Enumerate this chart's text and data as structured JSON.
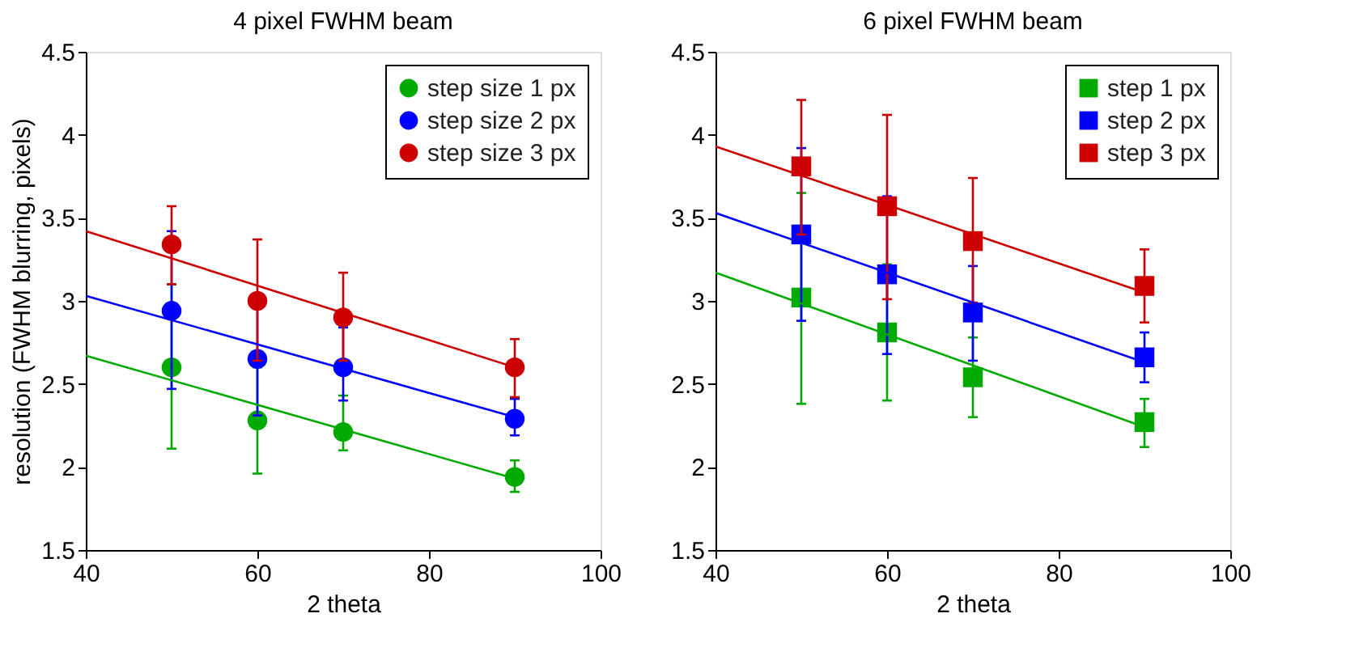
{
  "chart_data": [
    {
      "type": "scatter",
      "title": "4 pixel FWHM beam",
      "xlabel": "2 theta",
      "ylabel": "resolution (FWHM blurring, pixels)",
      "xlim": [
        40,
        100
      ],
      "ylim": [
        1.5,
        4.5
      ],
      "xticks": [
        40,
        60,
        80,
        100
      ],
      "yticks": [
        1.5,
        2,
        2.5,
        3,
        3.5,
        4,
        4.5
      ],
      "grid": false,
      "legend": "top right",
      "marker": "circle",
      "series": [
        {
          "name": "step size 1 px",
          "color": "#00aa00",
          "x": [
            50,
            60,
            70,
            90
          ],
          "values": [
            2.6,
            2.28,
            2.21,
            1.94
          ],
          "errors": [
            [
              2.11,
              3.1
            ],
            [
              1.96,
              2.6
            ],
            [
              2.1,
              2.43
            ],
            [
              1.85,
              2.04
            ]
          ]
        },
        {
          "name": "step size 2 px",
          "color": "#0000ff",
          "x": [
            50,
            60,
            70,
            90
          ],
          "values": [
            2.94,
            2.65,
            2.6,
            2.29
          ],
          "errors": [
            [
              2.47,
              3.42
            ],
            [
              2.31,
              2.98
            ],
            [
              2.4,
              2.84
            ],
            [
              2.19,
              2.41
            ]
          ]
        },
        {
          "name": "step size 3 px",
          "color": "#cc0000",
          "x": [
            50,
            60,
            70,
            90
          ],
          "values": [
            3.34,
            3.0,
            2.9,
            2.6
          ],
          "errors": [
            [
              3.1,
              3.57
            ],
            [
              2.64,
              3.37
            ],
            [
              2.64,
              3.17
            ],
            [
              2.42,
              2.77
            ]
          ]
        },
        {
          "type": "line",
          "color": "#00aa00",
          "x": [
            40,
            90
          ],
          "values": [
            2.67,
            1.93
          ],
          "marker": "none",
          "line_style": "solid"
        },
        {
          "type": "line",
          "color": "#0000ff",
          "x": [
            40,
            90
          ],
          "values": [
            3.03,
            2.3
          ],
          "marker": "none",
          "line_style": "solid"
        },
        {
          "type": "line",
          "color": "#cc0000",
          "x": [
            40,
            90
          ],
          "values": [
            3.42,
            2.6
          ],
          "marker": "none",
          "line_style": "solid"
        }
      ]
    },
    {
      "type": "scatter",
      "title": "6 pixel FWHM beam",
      "xlabel": "2 theta",
      "xlim": [
        40,
        100
      ],
      "ylim": [
        1.5,
        4.5
      ],
      "xticks": [
        40,
        60,
        80,
        100
      ],
      "yticks": [
        1.5,
        2,
        2.5,
        3,
        3.5,
        4,
        4.5
      ],
      "grid": false,
      "legend": "top right",
      "marker": "square",
      "series": [
        {
          "name": "step 1 px",
          "color": "#00aa00",
          "x": [
            50,
            60,
            70,
            90
          ],
          "values": [
            3.02,
            2.81,
            2.54,
            2.27
          ],
          "errors": [
            [
              2.38,
              3.65
            ],
            [
              2.4,
              3.22
            ],
            [
              2.3,
              2.78
            ],
            [
              2.12,
              2.41
            ]
          ]
        },
        {
          "name": "step 2 px",
          "color": "#0000ff",
          "x": [
            50,
            60,
            70,
            90
          ],
          "values": [
            3.4,
            3.16,
            2.93,
            2.66
          ],
          "errors": [
            [
              2.88,
              3.92
            ],
            [
              2.68,
              3.63
            ],
            [
              2.64,
              3.21
            ],
            [
              2.51,
              2.81
            ]
          ]
        },
        {
          "name": "step 3 px",
          "color": "#cc0000",
          "x": [
            50,
            60,
            70,
            90
          ],
          "values": [
            3.81,
            3.57,
            3.36,
            3.09
          ],
          "errors": [
            [
              3.4,
              4.21
            ],
            [
              3.01,
              4.12
            ],
            [
              2.99,
              3.74
            ],
            [
              2.87,
              3.31
            ]
          ]
        },
        {
          "type": "line",
          "color": "#00aa00",
          "x": [
            40,
            90
          ],
          "values": [
            3.17,
            2.24
          ],
          "marker": "none",
          "line_style": "solid"
        },
        {
          "type": "line",
          "color": "#0000ff",
          "x": [
            40,
            90
          ],
          "values": [
            3.53,
            2.63
          ],
          "marker": "none",
          "line_style": "solid"
        },
        {
          "type": "line",
          "color": "#cc0000",
          "x": [
            40,
            90
          ],
          "values": [
            3.93,
            3.05
          ],
          "marker": "none",
          "line_style": "solid"
        }
      ]
    }
  ]
}
